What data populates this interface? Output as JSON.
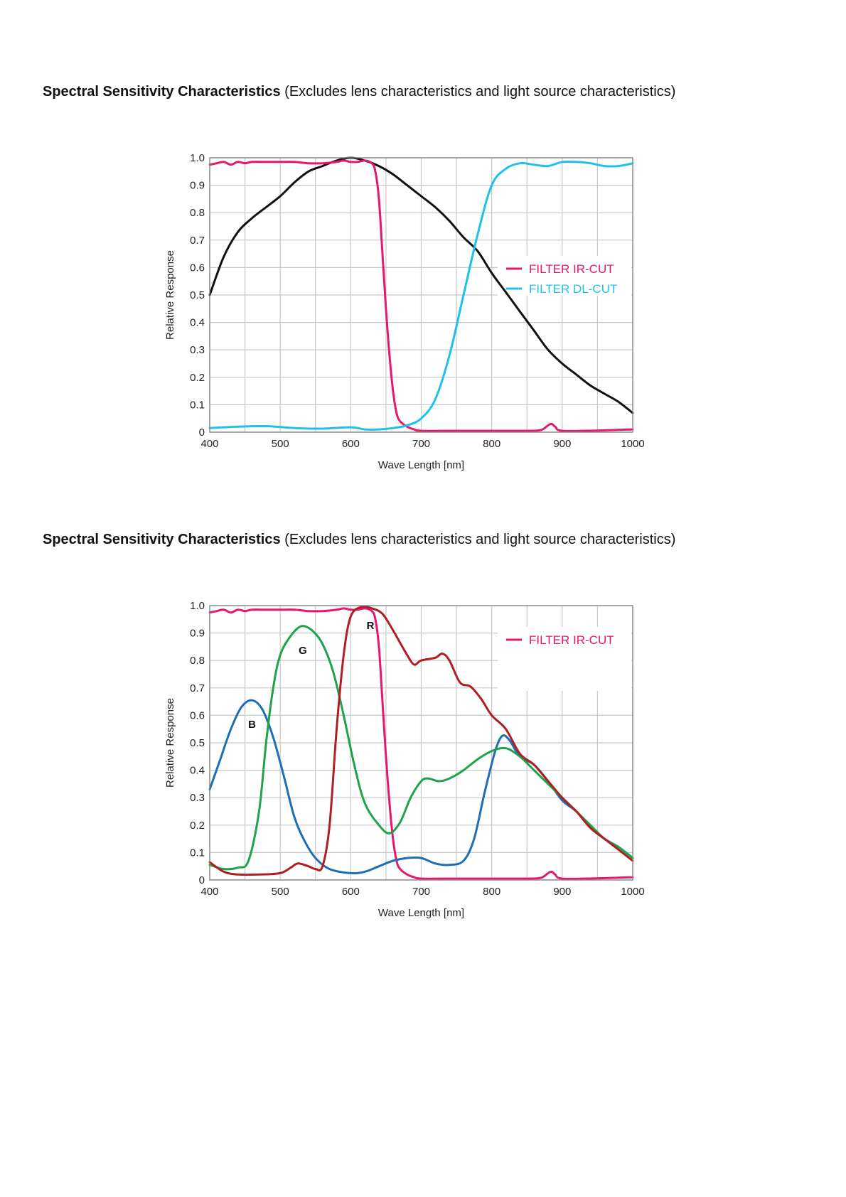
{
  "captions": [
    {
      "bold": "Spectral Sensitivity Characteristics",
      "normal": " (Excludes lens characteristics and light source characteristics)"
    },
    {
      "bold": "Spectral Sensitivity Characteristics",
      "normal": " (Excludes lens characteristics and light source characteristics)"
    }
  ],
  "colors": {
    "ir_cut": "#e5176e",
    "dl_cut": "#1fc1ec",
    "mono": "#111111",
    "red": "#b01e22",
    "green": "#1ea34a",
    "blue": "#1d6db7",
    "grid": "#c8c8c8"
  },
  "chart_data": [
    {
      "type": "line",
      "xlabel": "Wave Length [nm]",
      "ylabel": "Relative Response",
      "xlim": [
        400,
        1000
      ],
      "ylim": [
        0,
        1.0
      ],
      "xticks": [
        400,
        500,
        600,
        700,
        800,
        900,
        1000
      ],
      "yticks": [
        0,
        0.1,
        0.2,
        0.3,
        0.4,
        0.5,
        0.6,
        0.7,
        0.8,
        0.9,
        1.0
      ],
      "ytick_labels": [
        "0",
        "0.1",
        "0.2",
        "0.3",
        "0.4",
        "0.5",
        "0.6",
        "0.7",
        "0.8",
        "0.9",
        "1.0"
      ],
      "grid": true,
      "legend": [
        {
          "label": "FILTER IR-CUT",
          "color_key": "ir_cut"
        },
        {
          "label": "FILTER DL-CUT",
          "color_key": "dl_cut"
        }
      ],
      "series": [
        {
          "color_key": "mono",
          "points": [
            [
              400,
              0.5
            ],
            [
              420,
              0.64
            ],
            [
              440,
              0.73
            ],
            [
              460,
              0.78
            ],
            [
              480,
              0.82
            ],
            [
              500,
              0.86
            ],
            [
              520,
              0.91
            ],
            [
              540,
              0.95
            ],
            [
              560,
              0.97
            ],
            [
              580,
              0.99
            ],
            [
              600,
              1.0
            ],
            [
              620,
              0.99
            ],
            [
              640,
              0.97
            ],
            [
              660,
              0.94
            ],
            [
              680,
              0.9
            ],
            [
              700,
              0.86
            ],
            [
              720,
              0.82
            ],
            [
              740,
              0.77
            ],
            [
              760,
              0.71
            ],
            [
              780,
              0.66
            ],
            [
              800,
              0.58
            ],
            [
              820,
              0.51
            ],
            [
              840,
              0.44
            ],
            [
              860,
              0.37
            ],
            [
              880,
              0.3
            ],
            [
              900,
              0.25
            ],
            [
              920,
              0.21
            ],
            [
              940,
              0.17
            ],
            [
              960,
              0.14
            ],
            [
              980,
              0.11
            ],
            [
              1000,
              0.07
            ]
          ]
        },
        {
          "color_key": "ir_cut",
          "points": [
            [
              400,
              0.975
            ],
            [
              410,
              0.98
            ],
            [
              420,
              0.985
            ],
            [
              430,
              0.975
            ],
            [
              440,
              0.985
            ],
            [
              450,
              0.98
            ],
            [
              460,
              0.985
            ],
            [
              480,
              0.985
            ],
            [
              500,
              0.985
            ],
            [
              520,
              0.985
            ],
            [
              540,
              0.98
            ],
            [
              560,
              0.98
            ],
            [
              580,
              0.985
            ],
            [
              590,
              0.99
            ],
            [
              600,
              0.985
            ],
            [
              610,
              0.985
            ],
            [
              620,
              0.99
            ],
            [
              630,
              0.98
            ],
            [
              635,
              0.95
            ],
            [
              640,
              0.85
            ],
            [
              645,
              0.65
            ],
            [
              650,
              0.45
            ],
            [
              655,
              0.28
            ],
            [
              660,
              0.15
            ],
            [
              665,
              0.07
            ],
            [
              670,
              0.04
            ],
            [
              680,
              0.02
            ],
            [
              690,
              0.01
            ],
            [
              700,
              0.005
            ],
            [
              750,
              0.005
            ],
            [
              800,
              0.005
            ],
            [
              850,
              0.005
            ],
            [
              870,
              0.008
            ],
            [
              880,
              0.025
            ],
            [
              885,
              0.03
            ],
            [
              890,
              0.02
            ],
            [
              900,
              0.005
            ],
            [
              950,
              0.006
            ],
            [
              1000,
              0.01
            ]
          ]
        },
        {
          "color_key": "dl_cut",
          "points": [
            [
              400,
              0.015
            ],
            [
              440,
              0.02
            ],
            [
              480,
              0.022
            ],
            [
              520,
              0.015
            ],
            [
              560,
              0.013
            ],
            [
              600,
              0.018
            ],
            [
              620,
              0.01
            ],
            [
              640,
              0.01
            ],
            [
              660,
              0.015
            ],
            [
              680,
              0.025
            ],
            [
              700,
              0.05
            ],
            [
              720,
              0.12
            ],
            [
              740,
              0.28
            ],
            [
              760,
              0.5
            ],
            [
              780,
              0.72
            ],
            [
              800,
              0.9
            ],
            [
              820,
              0.96
            ],
            [
              840,
              0.98
            ],
            [
              860,
              0.975
            ],
            [
              880,
              0.97
            ],
            [
              900,
              0.985
            ],
            [
              920,
              0.985
            ],
            [
              940,
              0.98
            ],
            [
              960,
              0.97
            ],
            [
              980,
              0.97
            ],
            [
              1000,
              0.98
            ]
          ]
        }
      ]
    },
    {
      "type": "line",
      "xlabel": "Wave Length [nm]",
      "ylabel": "Relative Response",
      "xlim": [
        400,
        1000
      ],
      "ylim": [
        0,
        1.0
      ],
      "xticks": [
        400,
        500,
        600,
        700,
        800,
        900,
        1000
      ],
      "yticks": [
        0,
        0.1,
        0.2,
        0.3,
        0.4,
        0.5,
        0.6,
        0.7,
        0.8,
        0.9,
        1.0
      ],
      "ytick_labels": [
        "0",
        "0.1",
        "0.2",
        "0.3",
        "0.4",
        "0.5",
        "0.6",
        "0.7",
        "0.8",
        "0.9",
        "1.0"
      ],
      "grid": true,
      "legend": [
        {
          "label": "FILTER IR-CUT",
          "color_key": "ir_cut"
        }
      ],
      "annotations": [
        {
          "text": "R",
          "x": 628,
          "y": 0.93
        },
        {
          "text": "G",
          "x": 532,
          "y": 0.84
        },
        {
          "text": "B",
          "x": 460,
          "y": 0.57
        }
      ],
      "series": [
        {
          "color_key": "ir_cut",
          "points": [
            [
              400,
              0.975
            ],
            [
              410,
              0.98
            ],
            [
              420,
              0.985
            ],
            [
              430,
              0.975
            ],
            [
              440,
              0.985
            ],
            [
              450,
              0.98
            ],
            [
              460,
              0.985
            ],
            [
              480,
              0.985
            ],
            [
              500,
              0.985
            ],
            [
              520,
              0.985
            ],
            [
              540,
              0.98
            ],
            [
              560,
              0.98
            ],
            [
              580,
              0.985
            ],
            [
              590,
              0.99
            ],
            [
              600,
              0.985
            ],
            [
              610,
              0.985
            ],
            [
              620,
              0.99
            ],
            [
              630,
              0.98
            ],
            [
              635,
              0.95
            ],
            [
              640,
              0.85
            ],
            [
              645,
              0.65
            ],
            [
              650,
              0.45
            ],
            [
              655,
              0.28
            ],
            [
              660,
              0.15
            ],
            [
              665,
              0.07
            ],
            [
              670,
              0.04
            ],
            [
              680,
              0.02
            ],
            [
              690,
              0.01
            ],
            [
              700,
              0.005
            ],
            [
              750,
              0.005
            ],
            [
              800,
              0.005
            ],
            [
              850,
              0.005
            ],
            [
              870,
              0.008
            ],
            [
              880,
              0.025
            ],
            [
              885,
              0.03
            ],
            [
              890,
              0.02
            ],
            [
              900,
              0.005
            ],
            [
              950,
              0.006
            ],
            [
              1000,
              0.01
            ]
          ]
        },
        {
          "color_key": "blue",
          "points": [
            [
              400,
              0.33
            ],
            [
              415,
              0.44
            ],
            [
              430,
              0.55
            ],
            [
              445,
              0.63
            ],
            [
              460,
              0.655
            ],
            [
              475,
              0.62
            ],
            [
              490,
              0.52
            ],
            [
              505,
              0.38
            ],
            [
              520,
              0.23
            ],
            [
              535,
              0.14
            ],
            [
              550,
              0.08
            ],
            [
              570,
              0.04
            ],
            [
              600,
              0.025
            ],
            [
              620,
              0.03
            ],
            [
              640,
              0.05
            ],
            [
              660,
              0.07
            ],
            [
              680,
              0.08
            ],
            [
              700,
              0.08
            ],
            [
              720,
              0.06
            ],
            [
              740,
              0.055
            ],
            [
              760,
              0.07
            ],
            [
              775,
              0.15
            ],
            [
              790,
              0.32
            ],
            [
              805,
              0.47
            ],
            [
              815,
              0.525
            ],
            [
              825,
              0.51
            ],
            [
              840,
              0.45
            ],
            [
              860,
              0.42
            ],
            [
              880,
              0.36
            ],
            [
              900,
              0.29
            ],
            [
              920,
              0.25
            ],
            [
              940,
              0.19
            ],
            [
              960,
              0.15
            ],
            [
              980,
              0.12
            ],
            [
              1000,
              0.08
            ]
          ]
        },
        {
          "color_key": "green",
          "points": [
            [
              400,
              0.055
            ],
            [
              420,
              0.04
            ],
            [
              440,
              0.045
            ],
            [
              455,
              0.07
            ],
            [
              470,
              0.25
            ],
            [
              480,
              0.5
            ],
            [
              490,
              0.7
            ],
            [
              500,
              0.82
            ],
            [
              515,
              0.89
            ],
            [
              530,
              0.925
            ],
            [
              545,
              0.91
            ],
            [
              560,
              0.86
            ],
            [
              575,
              0.76
            ],
            [
              590,
              0.6
            ],
            [
              605,
              0.42
            ],
            [
              620,
              0.28
            ],
            [
              640,
              0.2
            ],
            [
              655,
              0.17
            ],
            [
              670,
              0.21
            ],
            [
              685,
              0.3
            ],
            [
              700,
              0.36
            ],
            [
              710,
              0.37
            ],
            [
              725,
              0.36
            ],
            [
              740,
              0.37
            ],
            [
              760,
              0.4
            ],
            [
              780,
              0.44
            ],
            [
              800,
              0.47
            ],
            [
              820,
              0.48
            ],
            [
              840,
              0.45
            ],
            [
              860,
              0.4
            ],
            [
              880,
              0.35
            ],
            [
              900,
              0.3
            ],
            [
              920,
              0.25
            ],
            [
              940,
              0.2
            ],
            [
              960,
              0.15
            ],
            [
              980,
              0.12
            ],
            [
              1000,
              0.08
            ]
          ]
        },
        {
          "color_key": "red",
          "points": [
            [
              400,
              0.065
            ],
            [
              420,
              0.03
            ],
            [
              440,
              0.02
            ],
            [
              470,
              0.02
            ],
            [
              500,
              0.025
            ],
            [
              515,
              0.045
            ],
            [
              525,
              0.06
            ],
            [
              540,
              0.05
            ],
            [
              550,
              0.04
            ],
            [
              560,
              0.05
            ],
            [
              570,
              0.2
            ],
            [
              580,
              0.55
            ],
            [
              590,
              0.82
            ],
            [
              600,
              0.96
            ],
            [
              615,
              0.995
            ],
            [
              630,
              0.99
            ],
            [
              645,
              0.97
            ],
            [
              660,
              0.91
            ],
            [
              680,
              0.82
            ],
            [
              690,
              0.785
            ],
            [
              700,
              0.8
            ],
            [
              720,
              0.81
            ],
            [
              730,
              0.825
            ],
            [
              740,
              0.8
            ],
            [
              755,
              0.72
            ],
            [
              770,
              0.705
            ],
            [
              785,
              0.66
            ],
            [
              800,
              0.6
            ],
            [
              820,
              0.55
            ],
            [
              840,
              0.46
            ],
            [
              860,
              0.42
            ],
            [
              880,
              0.36
            ],
            [
              900,
              0.3
            ],
            [
              920,
              0.25
            ],
            [
              940,
              0.19
            ],
            [
              960,
              0.15
            ],
            [
              980,
              0.11
            ],
            [
              1000,
              0.07
            ]
          ]
        }
      ]
    }
  ]
}
